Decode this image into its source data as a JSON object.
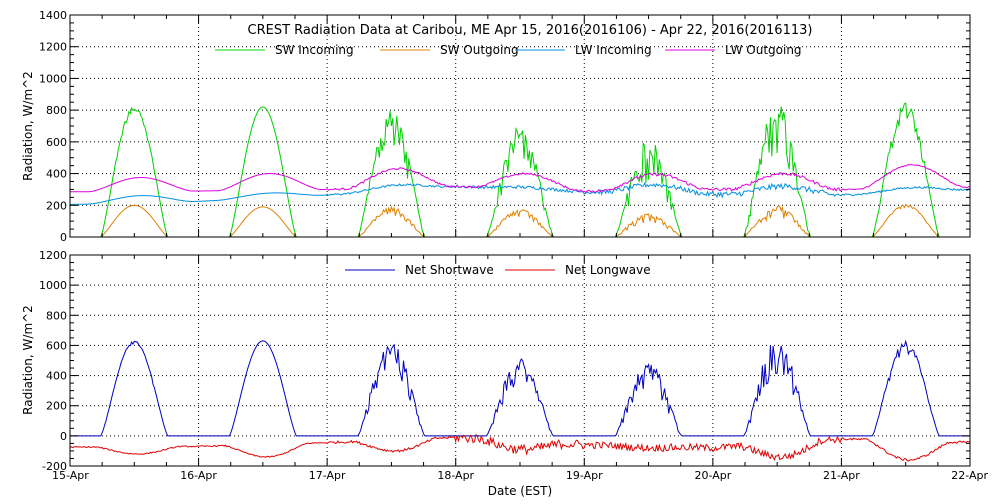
{
  "chart_data": [
    {
      "type": "line",
      "title": "CREST Radiation Data at Caribou, ME   Apr 15, 2016(2016106) - Apr 22, 2016(2016113)",
      "xlabel": "",
      "ylabel": "Radiation, W/m^2",
      "xlim": [
        15,
        22
      ],
      "ylim": [
        0,
        1400
      ],
      "yticks": [
        0,
        200,
        400,
        600,
        800,
        1000,
        1200,
        1400
      ],
      "xtick_labels": [
        "15-Apr",
        "16-Apr",
        "17-Apr",
        "18-Apr",
        "19-Apr",
        "20-Apr",
        "21-Apr",
        "22-Apr"
      ],
      "grid": true,
      "legend_position": "top",
      "series": [
        {
          "name": "SW Incoming",
          "color": "#00d000",
          "daily_peak": [
            830,
            820,
            810,
            700,
            620,
            860,
            850
          ],
          "variability": [
            0.05,
            0.0,
            0.35,
            0.35,
            0.45,
            0.4,
            0.15
          ]
        },
        {
          "name": "SW Outgoing",
          "color": "#e08000",
          "daily_peak": [
            200,
            190,
            190,
            175,
            150,
            200,
            205
          ],
          "variability": [
            0.0,
            0.0,
            0.3,
            0.3,
            0.4,
            0.4,
            0.1
          ]
        },
        {
          "name": "LW Incoming",
          "color": "#0090e0",
          "day_start_night": [
            205,
            225,
            265,
            320,
            285,
            270,
            265,
            300
          ],
          "daily_peak": [
            260,
            275,
            325,
            315,
            330,
            320,
            310
          ],
          "variability": [
            0.0,
            0.0,
            0.05,
            0.08,
            0.12,
            0.15,
            0.05
          ]
        },
        {
          "name": "LW Outgoing",
          "color": "#e000e0",
          "day_start_night": [
            285,
            290,
            300,
            320,
            290,
            300,
            300,
            315
          ],
          "daily_peak": [
            375,
            400,
            430,
            400,
            395,
            400,
            455
          ],
          "variability": [
            0.0,
            0.0,
            0.05,
            0.05,
            0.08,
            0.08,
            0.03
          ]
        }
      ]
    },
    {
      "type": "line",
      "title": "",
      "xlabel": "Date (EST)",
      "ylabel": "Radiation, W/m^2",
      "xlim": [
        15,
        22
      ],
      "ylim": [
        -200,
        1200
      ],
      "yticks": [
        -200,
        0,
        200,
        400,
        600,
        800,
        1000,
        1200
      ],
      "xtick_labels": [
        "15-Apr",
        "16-Apr",
        "17-Apr",
        "18-Apr",
        "19-Apr",
        "20-Apr",
        "21-Apr",
        "22-Apr"
      ],
      "grid": true,
      "legend_position": "top",
      "series": [
        {
          "name": "Net Shortwave",
          "color": "#0000c0",
          "daily_peak": [
            630,
            630,
            620,
            520,
            490,
            650,
            630
          ],
          "variability": [
            0.05,
            0.0,
            0.35,
            0.35,
            0.45,
            0.4,
            0.15
          ]
        },
        {
          "name": "Net Longwave",
          "color": "#e00000",
          "daily_min": [
            -120,
            -140,
            -100,
            -90,
            -80,
            -140,
            -160
          ],
          "night_level": [
            -75,
            -70,
            -45,
            -10,
            -60,
            -80,
            -20,
            -45
          ],
          "variability": [
            0.05,
            0.05,
            0.1,
            0.4,
            0.3,
            0.3,
            0.1
          ]
        }
      ]
    }
  ]
}
